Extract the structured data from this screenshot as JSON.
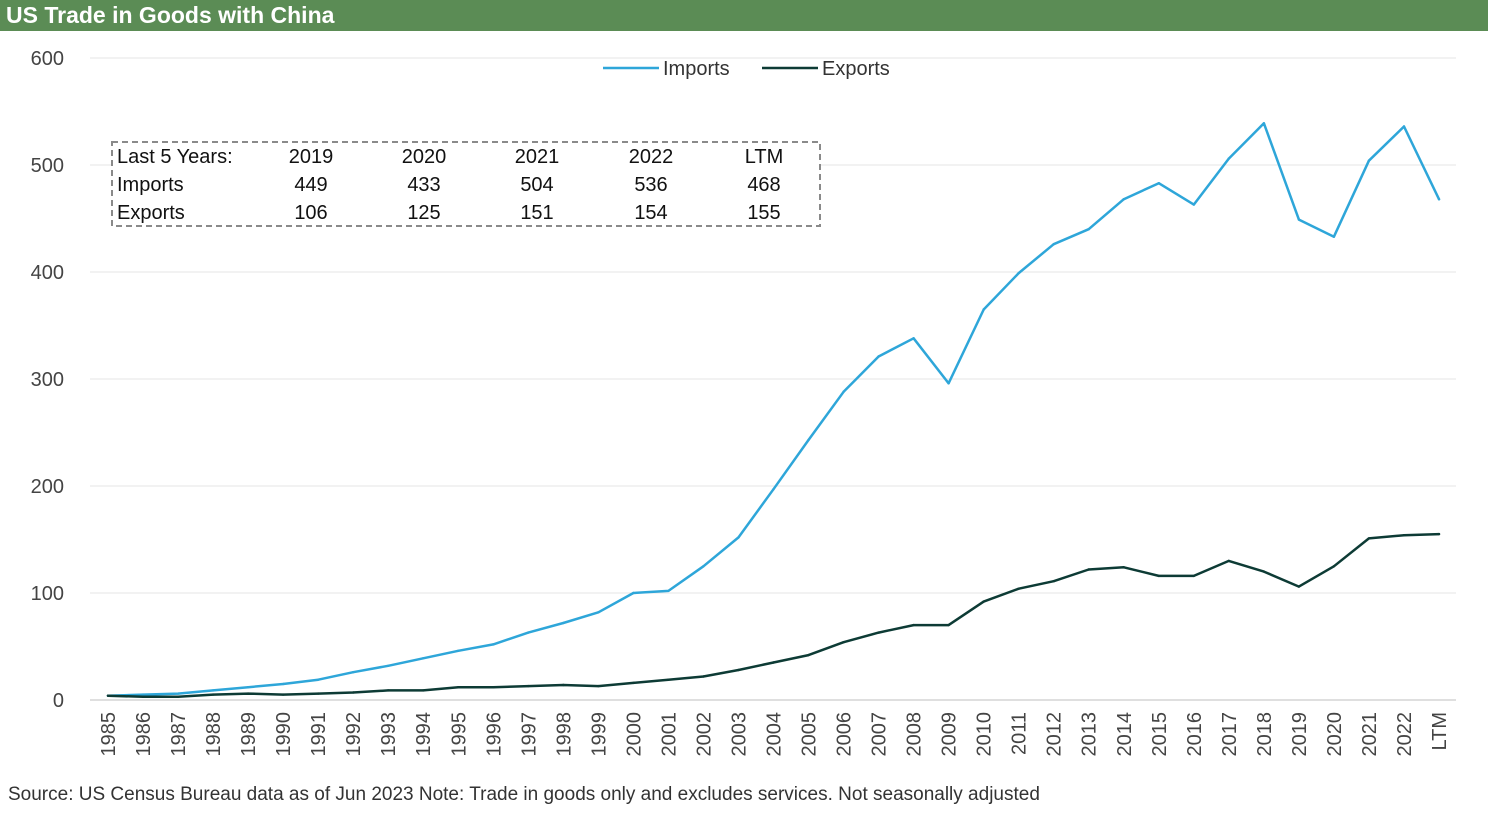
{
  "title": "US Trade in Goods with China",
  "source_note": "Source: US Census Bureau data as of Jun 2023 Note: Trade in goods only and excludes services. Not seasonally adjusted",
  "summary_table": {
    "header_label": "Last 5 Years:",
    "years": [
      "2019",
      "2020",
      "2021",
      "2022",
      "LTM"
    ],
    "rows": [
      {
        "label": "Imports",
        "values": [
          "449",
          "433",
          "504",
          "536",
          "468"
        ]
      },
      {
        "label": "Exports",
        "values": [
          "106",
          "125",
          "151",
          "154",
          "155"
        ]
      }
    ]
  },
  "chart_data": {
    "type": "line",
    "title": "US Trade in Goods with China",
    "xlabel": "",
    "ylabel": "",
    "ylim": [
      0,
      600
    ],
    "yticks": [
      0,
      100,
      200,
      300,
      400,
      500,
      600
    ],
    "grid": true,
    "legend_position": "top-center",
    "categories": [
      "1985",
      "1986",
      "1987",
      "1988",
      "1989",
      "1990",
      "1991",
      "1992",
      "1993",
      "1994",
      "1995",
      "1996",
      "1997",
      "1998",
      "1999",
      "2000",
      "2001",
      "2002",
      "2003",
      "2004",
      "2005",
      "2006",
      "2007",
      "2008",
      "2009",
      "2010",
      "2011",
      "2012",
      "2013",
      "2014",
      "2015",
      "2016",
      "2017",
      "2018",
      "2019",
      "2020",
      "2021",
      "2022",
      "LTM"
    ],
    "series": [
      {
        "name": "Imports",
        "color": "#2ea6d9",
        "values": [
          4,
          5,
          6,
          9,
          12,
          15,
          19,
          26,
          32,
          39,
          46,
          52,
          63,
          72,
          82,
          100,
          102,
          125,
          152,
          197,
          243,
          288,
          321,
          338,
          296,
          365,
          399,
          426,
          440,
          468,
          483,
          463,
          506,
          539,
          449,
          433,
          504,
          536,
          468
        ]
      },
      {
        "name": "Exports",
        "color": "#0d3b35",
        "values": [
          4,
          3,
          3,
          5,
          6,
          5,
          6,
          7,
          9,
          9,
          12,
          12,
          13,
          14,
          13,
          16,
          19,
          22,
          28,
          35,
          42,
          54,
          63,
          70,
          70,
          92,
          104,
          111,
          122,
          124,
          116,
          116,
          130,
          120,
          106,
          125,
          151,
          154,
          155
        ]
      }
    ]
  }
}
